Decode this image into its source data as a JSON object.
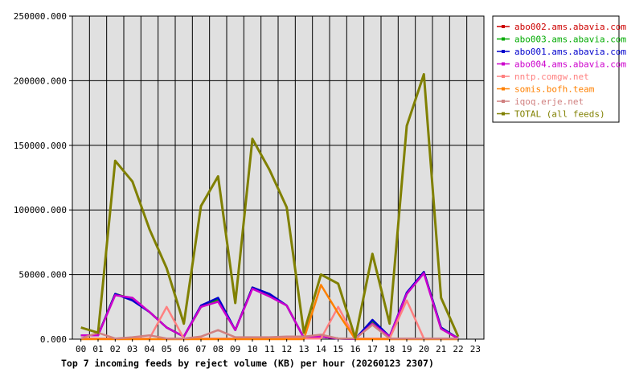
{
  "chart_data": {
    "type": "line",
    "title": "Top 7 incoming feeds by reject volume (KB) per hour (20260123 2307)",
    "xlabel": "",
    "ylabel": "",
    "x": [
      "00",
      "01",
      "02",
      "03",
      "04",
      "05",
      "06",
      "07",
      "08",
      "09",
      "10",
      "11",
      "12",
      "13",
      "14",
      "15",
      "16",
      "17",
      "18",
      "19",
      "20",
      "21",
      "22",
      "23"
    ],
    "ylim": [
      0,
      250000
    ],
    "yticks": [
      "0.000",
      "50000.000",
      "100000.000",
      "150000.000",
      "200000.000",
      "250000.000"
    ],
    "ytick_values": [
      0,
      50000,
      100000,
      150000,
      200000,
      250000
    ],
    "grid": true,
    "legend_position": "right",
    "colors": {
      "plot_background": "#e0e0e0",
      "grid": "#000000"
    },
    "series": [
      {
        "name": "abo002.ams.abavia.com",
        "color": "#cc0000",
        "values": [
          3000,
          3000,
          35000,
          31000,
          21000,
          9000,
          2000,
          25000,
          30000,
          7000,
          40000,
          34000,
          26000,
          1000,
          2000,
          500,
          200,
          13000,
          2000,
          35000,
          52000,
          8000,
          500,
          null
        ]
      },
      {
        "name": "abo003.ams.abavia.com",
        "color": "#00aa00",
        "values": [
          3000,
          3000,
          35000,
          31000,
          21000,
          9000,
          2000,
          25000,
          31000,
          7000,
          40000,
          34000,
          26000,
          1000,
          2000,
          500,
          200,
          14000,
          2000,
          35000,
          52000,
          9000,
          500,
          null
        ]
      },
      {
        "name": "abo001.ams.abavia.com",
        "color": "#0000cc",
        "values": [
          3000,
          3000,
          35000,
          30000,
          21000,
          9000,
          2000,
          26000,
          32000,
          7000,
          40000,
          35000,
          26000,
          1000,
          2000,
          500,
          200,
          15000,
          2000,
          36000,
          52000,
          9000,
          500,
          null
        ]
      },
      {
        "name": "abo004.ams.abavia.com",
        "color": "#cc00cc",
        "values": [
          3000,
          3000,
          34000,
          32000,
          21000,
          9000,
          2000,
          25000,
          29000,
          7000,
          39000,
          33000,
          26000,
          1000,
          2000,
          500,
          200,
          12000,
          2000,
          35000,
          51000,
          8000,
          500,
          null
        ]
      },
      {
        "name": "nntp.comgw.net",
        "color": "#ff8080",
        "values": [
          500,
          500,
          500,
          500,
          500,
          25000,
          500,
          500,
          500,
          500,
          500,
          500,
          500,
          500,
          500,
          25000,
          500,
          500,
          500,
          30000,
          500,
          500,
          500,
          null
        ]
      },
      {
        "name": "somis.bofh.team",
        "color": "#ff8000",
        "values": [
          0,
          0,
          0,
          0,
          0,
          0,
          0,
          0,
          0,
          0,
          0,
          0,
          0,
          0,
          42000,
          20000,
          0,
          0,
          0,
          0,
          0,
          0,
          0,
          null
        ]
      },
      {
        "name": "iqoq.erje.net",
        "color": "#d08080",
        "values": [
          500,
          5000,
          500,
          1500,
          3000,
          500,
          500,
          2000,
          7000,
          1500,
          1500,
          1500,
          2000,
          2000,
          3500,
          500,
          500,
          11000,
          500,
          500,
          500,
          500,
          500,
          null
        ]
      },
      {
        "name": "TOTAL (all feeds)",
        "color": "#808000",
        "values": [
          9000,
          5000,
          138000,
          122000,
          85000,
          55000,
          12000,
          103000,
          126000,
          28000,
          155000,
          131000,
          102000,
          5000,
          50000,
          43000,
          1000,
          66000,
          12000,
          165000,
          205000,
          32000,
          2000,
          null
        ]
      }
    ]
  }
}
